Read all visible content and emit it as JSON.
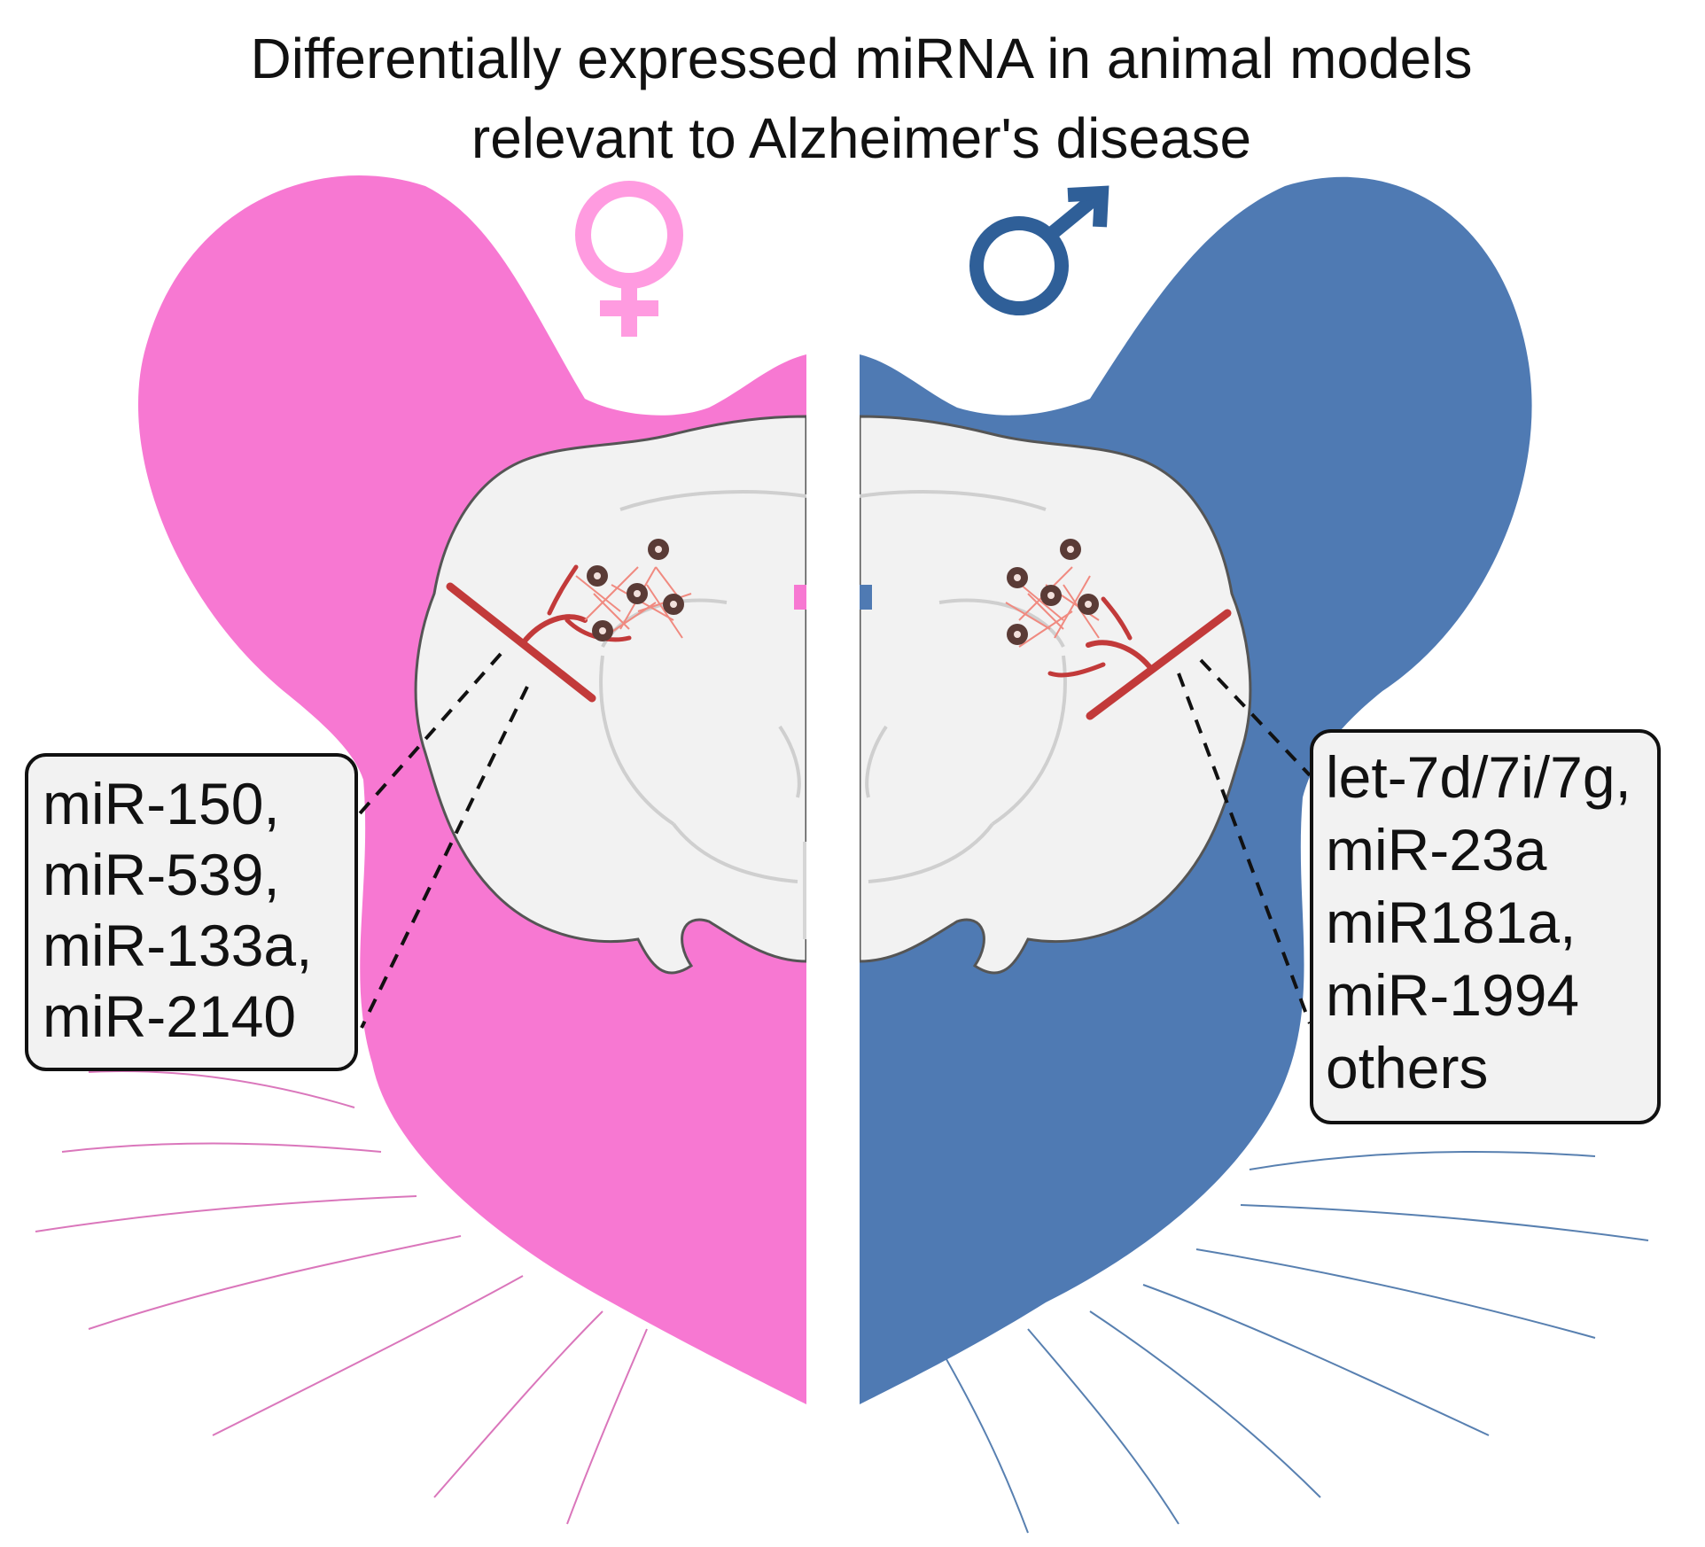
{
  "title": {
    "line1": "Differentially expressed miRNA in animal models",
    "line2": "relevant to Alzheimer's disease"
  },
  "female": {
    "symbol_label": "female-symbol",
    "mirnas": [
      "miR-150,",
      "miR-539,",
      "miR-133a,",
      "miR-2140"
    ]
  },
  "male": {
    "symbol_label": "male-symbol",
    "mirnas": [
      "let-7d/7i/7g,",
      "miR-23a",
      "miR181a,",
      "miR-1994",
      "others"
    ]
  },
  "colors": {
    "female": "#f778d2",
    "female_symbol": "#ff9be0",
    "male": "#4f7ab3",
    "male_symbol": "#2f5f98",
    "brain": "#f2f2f2",
    "vessel": "#c23a3a",
    "plaque_fiber": "#f08a80",
    "plaque_core": "#5a3b36"
  }
}
